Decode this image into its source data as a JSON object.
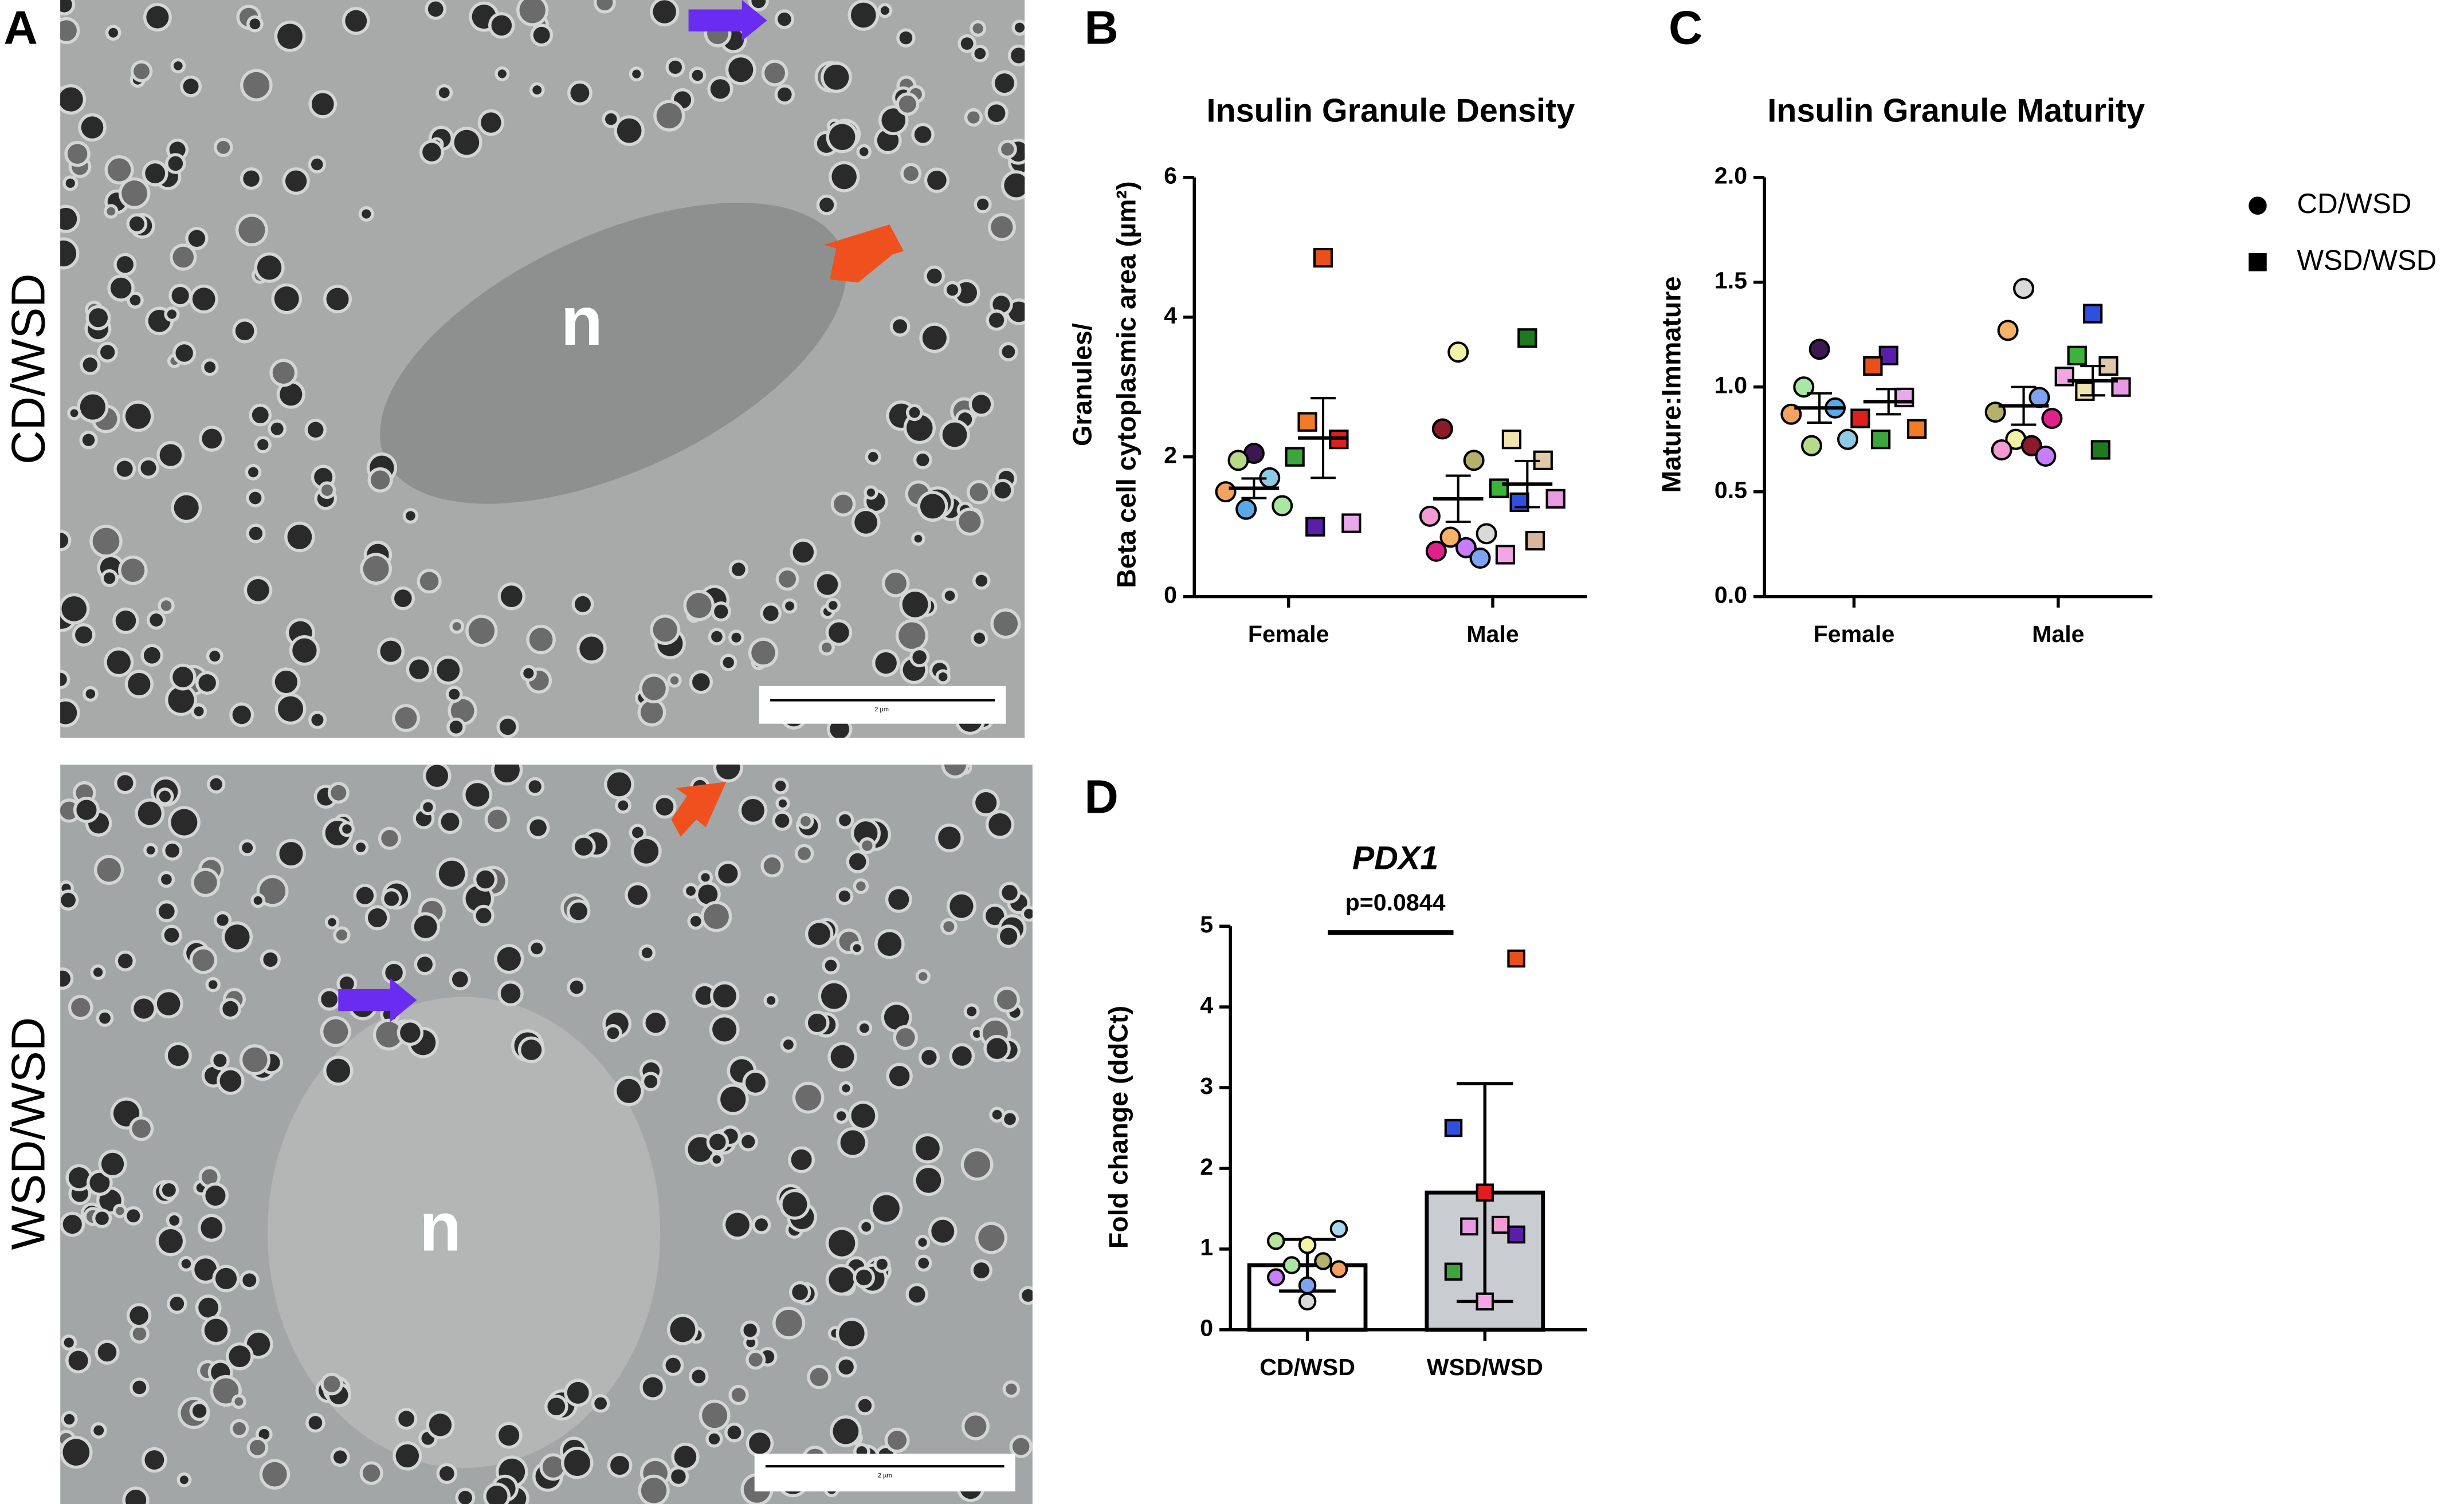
{
  "panel_a": {
    "label": "A",
    "images": [
      {
        "label": "CD/WSD",
        "nucleus": "n",
        "scale_bar": "2 µm"
      },
      {
        "label": "WSD/WSD",
        "nucleus": "n",
        "scale_bar": "2 µm"
      }
    ]
  },
  "chart_data": [
    {
      "type": "dot",
      "panel": "B",
      "title": "Insulin Granule Density",
      "y_label": [
        "Granules/",
        "Beta cell cytoplasmic area (µm²)"
      ],
      "categories": [
        "Female",
        "Male"
      ],
      "ylim": [
        0,
        6
      ],
      "yticks": [
        0,
        2,
        4,
        6
      ],
      "legend": "right",
      "series": [
        {
          "name": "CD/WSD",
          "marker": "circle",
          "values": [
            [
              2.05,
              1.95,
              1.7,
              1.5,
              1.3,
              1.25
            ],
            [
              3.5,
              2.4,
              1.95,
              1.15,
              0.9,
              0.85,
              0.7,
              0.65,
              0.55
            ]
          ],
          "colors": [
            [
              "#3d1752",
              "#b6d98a",
              "#8ecae6",
              "#f4a261",
              "#a8e6a1",
              "#5aa9e6"
            ],
            [
              "#f3f3a8",
              "#8b1a2b",
              "#b5b06a",
              "#f29bd3",
              "#d9d9d9",
              "#f7b267",
              "#c77dff",
              "#e0218a",
              "#7fa3f0"
            ]
          ],
          "mean": [
            1.55,
            1.4
          ],
          "sem": [
            0.14,
            0.33
          ]
        },
        {
          "name": "WSD/WSD",
          "marker": "square",
          "values": [
            [
              4.85,
              2.5,
              2.25,
              2.0,
              1.05,
              1.0
            ],
            [
              3.7,
              2.25,
              1.95,
              1.55,
              1.4,
              1.35,
              0.8,
              0.6
            ]
          ],
          "colors": [
            [
              "#e8501e",
              "#f07c28",
              "#e01e1e",
              "#3ca53c",
              "#e9a8ee",
              "#5a1fa8"
            ],
            [
              "#1f7a1f",
              "#efe3b0",
              "#e0c9a8",
              "#3cb43c",
              "#e89be3",
              "#2f4fe0",
              "#d9b59a",
              "#f2a6e6"
            ]
          ],
          "mean": [
            2.27,
            1.61
          ],
          "sem": [
            0.57,
            0.33
          ]
        }
      ]
    },
    {
      "type": "dot",
      "panel": "C",
      "title": "Insulin Granule Maturity",
      "y_label": [
        "Mature:Immature"
      ],
      "categories": [
        "Female",
        "Male"
      ],
      "ylim": [
        0,
        2
      ],
      "yticks": [
        {
          "value": 0,
          "label": "0.0"
        },
        0.5,
        {
          "value": 1,
          "label": "1.0"
        },
        1.5,
        {
          "value": 2,
          "label": "2.0"
        }
      ],
      "series": [
        {
          "name": "CD/WSD",
          "marker": "circle",
          "values": [
            [
              1.18,
              1.0,
              0.9,
              0.87,
              0.75,
              0.72
            ],
            [
              1.47,
              1.27,
              0.95,
              0.88,
              0.85,
              0.75,
              0.72,
              0.7,
              0.67
            ]
          ],
          "colors": [
            [
              "#3d1752",
              "#a8e6a1",
              "#5aa9e6",
              "#f4a261",
              "#8ecae6",
              "#b6d98a"
            ],
            [
              "#d9d9d9",
              "#f7b267",
              "#7fa3f0",
              "#b5b06a",
              "#e0218a",
              "#f3f3a8",
              "#8b1a2b",
              "#f29bd3",
              "#c77dff"
            ]
          ],
          "mean": [
            0.9,
            0.91
          ],
          "sem": [
            0.07,
            0.09
          ]
        },
        {
          "name": "WSD/WSD",
          "marker": "square",
          "values": [
            [
              1.15,
              1.1,
              0.95,
              0.85,
              0.8,
              0.75
            ],
            [
              1.35,
              1.15,
              1.1,
              1.05,
              1.0,
              0.98,
              0.7
            ]
          ],
          "colors": [
            [
              "#5a1fa8",
              "#e8501e",
              "#e9a8ee",
              "#e01e1e",
              "#f07c28",
              "#3ca53c"
            ],
            [
              "#2f4fe0",
              "#3cb43c",
              "#e0c9a8",
              "#f2a6e6",
              "#e89be3",
              "#efe3b0",
              "#1f7a1f"
            ]
          ],
          "mean": [
            0.93,
            1.03
          ],
          "sem": [
            0.06,
            0.07
          ]
        }
      ]
    },
    {
      "type": "bar",
      "panel": "D",
      "title": "PDX1",
      "annotation": "p=0.0844",
      "y_label": [
        "Fold change (ddCt)"
      ],
      "categories": [
        "CD/WSD",
        "WSD/WSD"
      ],
      "ylim": [
        0,
        5
      ],
      "yticks": [
        0,
        1,
        2,
        3,
        4,
        5
      ],
      "values": [
        0.8,
        1.7
      ],
      "errors": [
        0.32,
        1.35
      ],
      "bar_colors": [
        "#ffffff",
        "#c9cdd2"
      ],
      "markers": [
        "circle",
        "square"
      ],
      "points": [
        [
          1.25,
          1.1,
          1.05,
          0.85,
          0.8,
          0.75,
          0.65,
          0.55,
          0.35
        ],
        [
          4.6,
          2.5,
          1.7,
          1.3,
          1.28,
          1.18,
          0.72,
          0.35
        ]
      ],
      "point_colors": [
        [
          "#a8d8f0",
          "#b6e3a0",
          "#f3f3a8",
          "#b5b06a",
          "#a8e6a1",
          "#f4a261",
          "#c77dff",
          "#7fa3f0",
          "#d9d9d9"
        ],
        [
          "#e8501e",
          "#2f4fe0",
          "#e01e1e",
          "#f29bd3",
          "#e89be3",
          "#5a1fa8",
          "#3ca53c",
          "#f2a6e6"
        ]
      ]
    }
  ]
}
